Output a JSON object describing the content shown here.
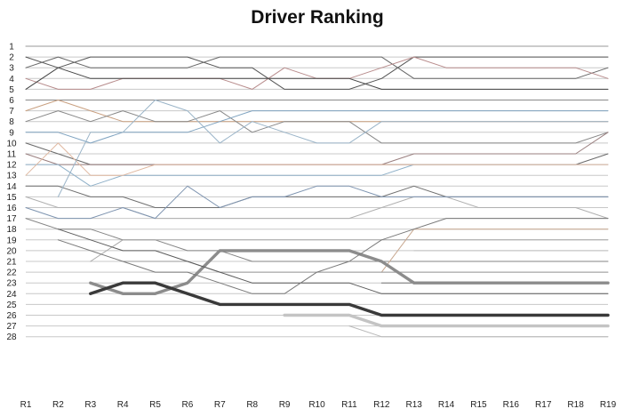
{
  "chart_data": {
    "type": "line",
    "title": "Driver Ranking",
    "xlabel": "",
    "ylabel": "",
    "x": [
      "R1",
      "R2",
      "R3",
      "R4",
      "R5",
      "R6",
      "R7",
      "R8",
      "R9",
      "R10",
      "R11",
      "R12",
      "R13",
      "R14",
      "R15",
      "R16",
      "R17",
      "R18",
      "R19"
    ],
    "y_ticks": [
      "1",
      "2",
      "3",
      "4",
      "5",
      "6",
      "7",
      "8",
      "9",
      "10",
      "11",
      "12",
      "13",
      "14",
      "15",
      "16",
      "17",
      "18",
      "19",
      "20",
      "21",
      "22",
      "23",
      "24",
      "25",
      "26",
      "27",
      "28"
    ],
    "ylim": [
      1,
      28
    ],
    "y_inverted": true,
    "grid": "horizontal",
    "legend": "none",
    "series": [
      {
        "color": "#9a9a9a",
        "width": 1.1,
        "values": [
          1,
          1,
          1,
          1,
          1,
          1,
          1,
          1,
          1,
          1,
          1,
          1,
          1,
          1,
          1,
          1,
          1,
          1,
          1
        ]
      },
      {
        "color": "#555555",
        "width": 1,
        "values": [
          2,
          3,
          2,
          2,
          2,
          2,
          3,
          3,
          5,
          5,
          5,
          4,
          2,
          2,
          2,
          2,
          2,
          2,
          2
        ]
      },
      {
        "color": "#666666",
        "width": 1,
        "values": [
          3,
          2,
          3,
          3,
          3,
          3,
          2,
          2,
          2,
          2,
          2,
          2,
          4,
          4,
          4,
          4,
          4,
          4,
          3
        ]
      },
      {
        "color": "#b88c8c",
        "width": 1,
        "values": [
          4,
          5,
          5,
          4,
          4,
          4,
          4,
          5,
          3,
          4,
          4,
          3,
          2,
          3,
          3,
          3,
          3,
          3,
          4
        ]
      },
      {
        "color": "#444444",
        "width": 1,
        "values": [
          5,
          3,
          4,
          4,
          4,
          4,
          4,
          4,
          4,
          4,
          4,
          5,
          5,
          5,
          5,
          5,
          5,
          5,
          5
        ]
      },
      {
        "color": "#8a8a8a",
        "width": 1,
        "values": [
          6,
          6,
          6,
          6,
          6,
          6,
          6,
          6,
          6,
          6,
          6,
          6,
          6,
          6,
          6,
          6,
          6,
          6,
          6
        ]
      },
      {
        "color": "#c9a080",
        "width": 1,
        "values": [
          7,
          6,
          7,
          8,
          8,
          8,
          8,
          8,
          8,
          8,
          8,
          8,
          8,
          8,
          8,
          8,
          8,
          8,
          8
        ]
      },
      {
        "color": "#888888",
        "width": 1,
        "values": [
          8,
          7,
          8,
          7,
          8,
          8,
          7,
          9,
          8,
          8,
          8,
          10,
          10,
          10,
          10,
          10,
          10,
          10,
          9
        ]
      },
      {
        "color": "#7fa3c0",
        "width": 1,
        "values": [
          9,
          9,
          10,
          9,
          9,
          9,
          8,
          7,
          7,
          7,
          7,
          7,
          7,
          7,
          7,
          7,
          7,
          7,
          7
        ]
      },
      {
        "color": "#6a6a6a",
        "width": 1,
        "values": [
          10,
          11,
          12,
          12,
          12,
          12,
          12,
          12,
          12,
          12,
          12,
          12,
          12,
          12,
          12,
          12,
          12,
          12,
          11
        ]
      },
      {
        "color": "#9a7f7f",
        "width": 1,
        "values": [
          11,
          12,
          12,
          12,
          12,
          12,
          12,
          12,
          12,
          12,
          12,
          12,
          11,
          11,
          11,
          11,
          11,
          11,
          9
        ]
      },
      {
        "color": "#8fb0c8",
        "width": 1,
        "values": [
          12,
          12,
          14,
          13,
          13,
          13,
          13,
          13,
          13,
          13,
          13,
          13,
          12,
          12,
          12,
          12,
          12,
          12,
          12
        ]
      },
      {
        "color": "#e0b8a0",
        "width": 1,
        "values": [
          13,
          10,
          13,
          13,
          12,
          12,
          12,
          12,
          12,
          12,
          12,
          12,
          12,
          12,
          12,
          12,
          12,
          12,
          12
        ]
      },
      {
        "color": "#707070",
        "width": 1,
        "values": [
          14,
          14,
          15,
          15,
          16,
          16,
          16,
          15,
          15,
          15,
          15,
          15,
          14,
          15,
          15,
          15,
          15,
          15,
          15
        ]
      },
      {
        "color": "#b0b0b0",
        "width": 1,
        "values": [
          15,
          16,
          16,
          16,
          17,
          17,
          17,
          17,
          17,
          17,
          17,
          16,
          15,
          15,
          16,
          16,
          16,
          16,
          17
        ]
      },
      {
        "color": "#7e94b0",
        "width": 1,
        "values": [
          16,
          17,
          17,
          16,
          17,
          14,
          16,
          15,
          15,
          14,
          14,
          15,
          15,
          15,
          15,
          15,
          15,
          15,
          15
        ]
      },
      {
        "color": "#858585",
        "width": 1,
        "values": [
          17,
          18,
          18,
          19,
          19,
          20,
          20,
          21,
          21,
          21,
          21,
          21,
          21,
          21,
          21,
          21,
          21,
          21,
          21
        ]
      },
      {
        "color": "#a8a8a8",
        "width": 1,
        "values": [
          null,
          null,
          21,
          19,
          19,
          19,
          19,
          19,
          19,
          19,
          19,
          19,
          19,
          19,
          19,
          19,
          19,
          19,
          19
        ]
      },
      {
        "color": "#c8a890",
        "width": 1,
        "values": [
          null,
          null,
          null,
          null,
          null,
          null,
          null,
          null,
          null,
          null,
          null,
          22,
          18,
          18,
          18,
          18,
          18,
          18,
          18
        ]
      },
      {
        "color": "#9ab4c8",
        "width": 1,
        "values": [
          null,
          15,
          9,
          9,
          6,
          7,
          10,
          8,
          9,
          10,
          10,
          8,
          8,
          8,
          8,
          8,
          8,
          8,
          8
        ]
      },
      {
        "color": "#999999",
        "width": 1,
        "values": [
          null,
          null,
          null,
          21,
          21,
          21,
          22,
          22,
          22,
          22,
          22,
          22,
          22,
          22,
          22,
          22,
          22,
          22,
          22
        ]
      },
      {
        "color": "#777777",
        "width": 1,
        "values": [
          null,
          null,
          null,
          null,
          null,
          null,
          null,
          null,
          null,
          null,
          null,
          23,
          23,
          23,
          23,
          23,
          23,
          23,
          23
        ]
      },
      {
        "color": "#c0c0c0",
        "width": 1,
        "values": [
          null,
          null,
          null,
          null,
          null,
          null,
          null,
          null,
          null,
          null,
          null,
          null,
          20,
          20,
          20,
          20,
          20,
          20,
          20
        ]
      },
      {
        "color": "#8c8c8c",
        "width": 3.4,
        "values": [
          null,
          null,
          23,
          24,
          24,
          23,
          20,
          20,
          20,
          20,
          20,
          21,
          23,
          23,
          23,
          23,
          23,
          23,
          23
        ]
      },
      {
        "color": "#3a3a3a",
        "width": 3.4,
        "values": [
          null,
          null,
          24,
          23,
          23,
          24,
          25,
          25,
          25,
          25,
          25,
          26,
          26,
          26,
          26,
          26,
          26,
          26,
          26
        ]
      },
      {
        "color": "#c4c4c4",
        "width": 3.4,
        "values": [
          null,
          null,
          null,
          null,
          null,
          null,
          null,
          null,
          26,
          26,
          26,
          27,
          27,
          27,
          27,
          27,
          27,
          27,
          27
        ]
      },
      {
        "color": "#b8b8b8",
        "width": 1,
        "values": [
          null,
          null,
          null,
          null,
          null,
          null,
          null,
          null,
          null,
          null,
          27,
          28,
          28,
          28,
          28,
          28,
          28,
          28,
          28
        ]
      },
      {
        "color": "#5c5c5c",
        "width": 1,
        "values": [
          null,
          18,
          19,
          20,
          20,
          21,
          22,
          23,
          23,
          23,
          23,
          24,
          24,
          24,
          24,
          24,
          24,
          24,
          24
        ]
      },
      {
        "color": "#7a7a7a",
        "width": 1,
        "values": [
          null,
          19,
          20,
          21,
          22,
          22,
          23,
          24,
          24,
          22,
          21,
          19,
          18,
          17,
          17,
          17,
          17,
          17,
          17
        ]
      },
      {
        "color": "#9a9a9a",
        "width": 1,
        "values": [
          null,
          null,
          null,
          null,
          null,
          null,
          null,
          null,
          null,
          null,
          null,
          null,
          null,
          null,
          null,
          null,
          null,
          null,
          null
        ]
      }
    ]
  }
}
